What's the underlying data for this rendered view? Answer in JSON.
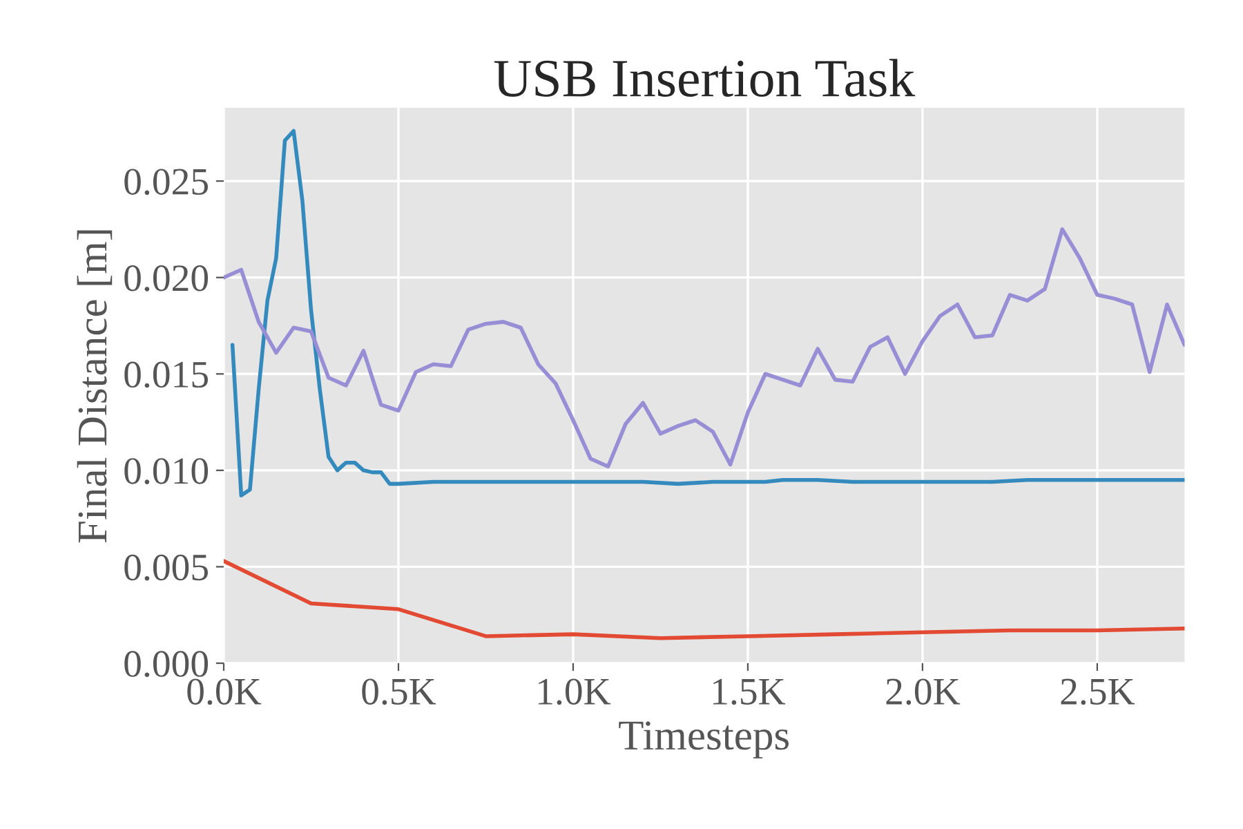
{
  "chart_data": {
    "type": "line",
    "title": "USB Insertion Task",
    "xlabel": "Timesteps",
    "ylabel": "Final Distance [m]",
    "xlim": [
      0,
      2750
    ],
    "ylim": [
      0,
      0.0288
    ],
    "xticks": [
      {
        "value": 0,
        "label": "0.0K"
      },
      {
        "value": 500,
        "label": "0.5K"
      },
      {
        "value": 1000,
        "label": "1.0K"
      },
      {
        "value": 1500,
        "label": "1.5K"
      },
      {
        "value": 2000,
        "label": "2.0K"
      },
      {
        "value": 2500,
        "label": "2.5K"
      }
    ],
    "yticks": [
      {
        "value": 0,
        "label": "0.000"
      },
      {
        "value": 0.005,
        "label": "0.005"
      },
      {
        "value": 0.01,
        "label": "0.010"
      },
      {
        "value": 0.015,
        "label": "0.015"
      },
      {
        "value": 0.02,
        "label": "0.020"
      },
      {
        "value": 0.025,
        "label": "0.025"
      }
    ],
    "grid": true,
    "marker": "none",
    "line_style": "solid",
    "series": [
      {
        "color": "#E24A33",
        "x": [
          0,
          250,
          500,
          750,
          1000,
          1250,
          1500,
          1750,
          2000,
          2250,
          2500,
          2750
        ],
        "values": [
          0.0053,
          0.0031,
          0.0028,
          0.0014,
          0.0015,
          0.0013,
          0.0014,
          0.0015,
          0.0016,
          0.0017,
          0.0017,
          0.0018
        ]
      },
      {
        "color": "#348ABD",
        "x": [
          25,
          50,
          75,
          100,
          125,
          150,
          175,
          200,
          225,
          250,
          275,
          300,
          325,
          350,
          375,
          400,
          425,
          450,
          475,
          500,
          600,
          700,
          800,
          900,
          1000,
          1100,
          1200,
          1300,
          1400,
          1500,
          1550,
          1600,
          1700,
          1800,
          1900,
          2000,
          2100,
          2200,
          2300,
          2400,
          2500,
          2600,
          2700,
          2750
        ],
        "values": [
          0.0165,
          0.0087,
          0.009,
          0.0142,
          0.0188,
          0.021,
          0.0271,
          0.0276,
          0.024,
          0.0183,
          0.0142,
          0.0107,
          0.01,
          0.0104,
          0.0104,
          0.01,
          0.0099,
          0.0099,
          0.0093,
          0.0093,
          0.0094,
          0.0094,
          0.0094,
          0.0094,
          0.0094,
          0.0094,
          0.0094,
          0.0093,
          0.0094,
          0.0094,
          0.0094,
          0.0095,
          0.0095,
          0.0094,
          0.0094,
          0.0094,
          0.0094,
          0.0094,
          0.0095,
          0.0095,
          0.0095,
          0.0095,
          0.0095,
          0.0095
        ]
      },
      {
        "color": "#988ED5",
        "x": [
          0,
          50,
          100,
          150,
          200,
          250,
          300,
          350,
          400,
          450,
          500,
          550,
          600,
          650,
          700,
          750,
          800,
          850,
          900,
          950,
          1000,
          1050,
          1100,
          1150,
          1200,
          1250,
          1300,
          1350,
          1400,
          1450,
          1500,
          1550,
          1600,
          1650,
          1700,
          1750,
          1800,
          1850,
          1900,
          1950,
          2000,
          2050,
          2100,
          2150,
          2200,
          2250,
          2300,
          2350,
          2400,
          2450,
          2500,
          2550,
          2600,
          2650,
          2700,
          2750
        ],
        "values": [
          0.02,
          0.0204,
          0.0177,
          0.0161,
          0.0174,
          0.0172,
          0.0148,
          0.0144,
          0.0162,
          0.0134,
          0.0131,
          0.0151,
          0.0155,
          0.0154,
          0.0173,
          0.0176,
          0.0177,
          0.0174,
          0.0155,
          0.0145,
          0.0126,
          0.0106,
          0.0102,
          0.0124,
          0.0135,
          0.0119,
          0.0123,
          0.0126,
          0.012,
          0.0103,
          0.013,
          0.015,
          0.0147,
          0.0144,
          0.0163,
          0.0147,
          0.0146,
          0.0164,
          0.0169,
          0.015,
          0.0167,
          0.018,
          0.0186,
          0.0169,
          0.017,
          0.0191,
          0.0188,
          0.0194,
          0.0225,
          0.021,
          0.0191,
          0.0189,
          0.0186,
          0.0151,
          0.0186,
          0.0165
        ]
      }
    ]
  }
}
